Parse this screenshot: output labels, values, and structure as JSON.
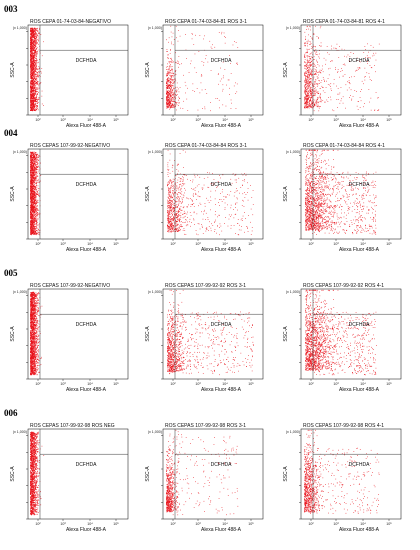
{
  "colors": {
    "dots": "#e8121a",
    "frame": "#000000",
    "gate": "#333333"
  },
  "rows": [
    {
      "label": "003",
      "panels": [
        {
          "title": "ROS CEPA 01-74-03-84-NEGATIVO",
          "density": "negative",
          "count": 1900
        },
        {
          "title": "ROS CEPA 01-74-03-84-81 ROS 3-1",
          "density": "low",
          "count": 650
        },
        {
          "title": "ROS CEPA 01-74-03-84-81 ROS 4-1",
          "density": "medium",
          "count": 900
        }
      ]
    },
    {
      "label": "004",
      "panels": [
        {
          "title": "ROS CEPAS 107-99-92-NEGATIVO",
          "density": "negative",
          "count": 1900
        },
        {
          "title": "ROS CEPA 01-74-03-84-84 ROS 3-1",
          "density": "spread",
          "count": 900
        },
        {
          "title": "ROS CEPA 01-74-03-84-84 ROS 4-1",
          "density": "high",
          "count": 1700
        }
      ]
    },
    {
      "label": "005",
      "panels": [
        {
          "title": "ROS CEPAS 107-99-92-NEGATIVO",
          "density": "negative",
          "count": 1900
        },
        {
          "title": "ROS CEPAS 107-99-92-92 ROS 3-1",
          "density": "spread",
          "count": 1100
        },
        {
          "title": "ROS CEPAS 107-99-92-92 ROS 4-1",
          "density": "high",
          "count": 1700
        }
      ]
    },
    {
      "label": "006",
      "panels": [
        {
          "title": "ROS CEPAS 107-99-92-98 ROS NEG",
          "density": "negative",
          "count": 1600
        },
        {
          "title": "ROS CEPAS 107-99-92-98 ROS 3-1",
          "density": "low",
          "count": 800
        },
        {
          "title": "ROS CEPAS 107-99-92-98 ROS 4-1",
          "density": "medium",
          "count": 1000
        }
      ]
    }
  ],
  "chart_data": {
    "type": "scatter",
    "xlabel": "Alexa Fluor 488-A",
    "ylabel": "SSC-A",
    "y_top_tick": "(x 1,000)",
    "gate_label": "DCFHDA",
    "x_scale": "log",
    "x_ticks": [
      "10²",
      "10³",
      "10⁴",
      "10⁵"
    ],
    "grid": false
  }
}
